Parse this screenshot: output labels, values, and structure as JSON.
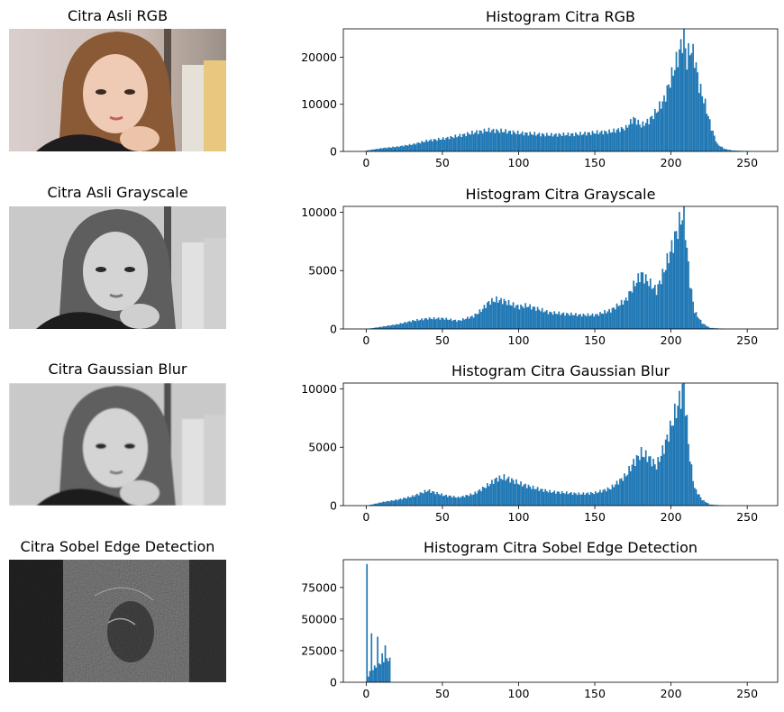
{
  "figure": {
    "rows": [
      {
        "image_title": "Citra Asli RGB",
        "image_kind": "rgb-photo",
        "hist_title": "Histogram Citra RGB"
      },
      {
        "image_title": "Citra Asli Grayscale",
        "image_kind": "grayscale-photo",
        "hist_title": "Histogram Citra Grayscale"
      },
      {
        "image_title": "Citra Gaussian Blur",
        "image_kind": "blurred-grayscale-photo",
        "hist_title": "Histogram Citra Gaussian Blur"
      },
      {
        "image_title": "Citra Sobel Edge Detection",
        "image_kind": "edge-map",
        "hist_title": "Histogram Citra Sobel Edge Detection"
      }
    ],
    "bar_color": "#1f77b4"
  },
  "chart_data": [
    {
      "type": "bar",
      "title": "Histogram Citra RGB",
      "xlabel": "",
      "ylabel": "",
      "xlim": [
        -15,
        270
      ],
      "ylim": [
        0,
        26000
      ],
      "xticks": [
        0,
        50,
        100,
        150,
        200,
        250
      ],
      "yticks": [
        0,
        10000,
        20000
      ],
      "x": [
        0,
        10,
        20,
        30,
        40,
        50,
        60,
        70,
        80,
        90,
        100,
        110,
        120,
        130,
        140,
        150,
        160,
        170,
        175,
        180,
        185,
        190,
        195,
        200,
        205,
        208,
        210,
        212,
        215,
        218,
        222,
        226,
        230,
        235,
        240,
        255
      ],
      "values": [
        200,
        700,
        1000,
        1500,
        2300,
        2700,
        3300,
        4000,
        4500,
        4300,
        3900,
        3700,
        3500,
        3600,
        3700,
        4000,
        4200,
        5000,
        7000,
        5500,
        6500,
        8500,
        11000,
        16000,
        21000,
        25000,
        19000,
        22000,
        20000,
        14000,
        10000,
        5000,
        1500,
        500,
        200,
        0
      ]
    },
    {
      "type": "bar",
      "title": "Histogram Citra Grayscale",
      "xlabel": "",
      "ylabel": "",
      "xlim": [
        -15,
        270
      ],
      "ylim": [
        0,
        10500
      ],
      "xticks": [
        0,
        50,
        100,
        150,
        200,
        250
      ],
      "yticks": [
        0,
        5000,
        10000
      ],
      "x": [
        0,
        10,
        20,
        30,
        40,
        50,
        60,
        70,
        75,
        80,
        85,
        90,
        95,
        100,
        105,
        110,
        120,
        130,
        140,
        150,
        160,
        170,
        175,
        180,
        185,
        190,
        195,
        200,
        205,
        208,
        210,
        212,
        215,
        220,
        225,
        235,
        255
      ],
      "values": [
        0,
        200,
        400,
        700,
        900,
        900,
        700,
        1100,
        1600,
        2300,
        2500,
        2400,
        2100,
        1900,
        2000,
        1800,
        1400,
        1300,
        1200,
        1200,
        1600,
        2500,
        3700,
        4700,
        4000,
        3300,
        5000,
        7000,
        9000,
        10200,
        6800,
        4000,
        1500,
        500,
        100,
        0,
        0
      ]
    },
    {
      "type": "bar",
      "title": "Histogram Citra Gaussian Blur",
      "xlabel": "",
      "ylabel": "",
      "xlim": [
        -15,
        270
      ],
      "ylim": [
        0,
        10500
      ],
      "xticks": [
        0,
        50,
        100,
        150,
        200,
        250
      ],
      "yticks": [
        0,
        5000,
        10000
      ],
      "x": [
        0,
        10,
        20,
        30,
        40,
        50,
        60,
        70,
        80,
        85,
        90,
        95,
        100,
        110,
        120,
        130,
        140,
        150,
        160,
        170,
        175,
        180,
        185,
        190,
        195,
        200,
        205,
        208,
        210,
        212,
        215,
        220,
        225,
        235,
        255
      ],
      "values": [
        0,
        300,
        500,
        800,
        1300,
        900,
        700,
        1000,
        1800,
        2300,
        2400,
        2200,
        1900,
        1500,
        1200,
        1100,
        1000,
        1100,
        1500,
        2600,
        3700,
        4500,
        4100,
        3400,
        5000,
        7000,
        9000,
        10200,
        7000,
        4000,
        1500,
        500,
        100,
        0,
        0
      ]
    },
    {
      "type": "bar",
      "title": "Histogram Citra Sobel Edge Detection",
      "xlabel": "",
      "ylabel": "",
      "xlim": [
        -15,
        270
      ],
      "ylim": [
        0,
        97000
      ],
      "xticks": [
        0,
        50,
        100,
        150,
        200,
        250
      ],
      "yticks": [
        0,
        25000,
        50000,
        75000
      ],
      "x": [
        0,
        1,
        2,
        3,
        4,
        5,
        6,
        7,
        8,
        9,
        10,
        11,
        12,
        13,
        14,
        15
      ],
      "values": [
        92000,
        5000,
        8000,
        41000,
        10000,
        12000,
        13000,
        35000,
        14000,
        16000,
        21000,
        16000,
        32000,
        17000,
        18000,
        20000
      ]
    }
  ]
}
